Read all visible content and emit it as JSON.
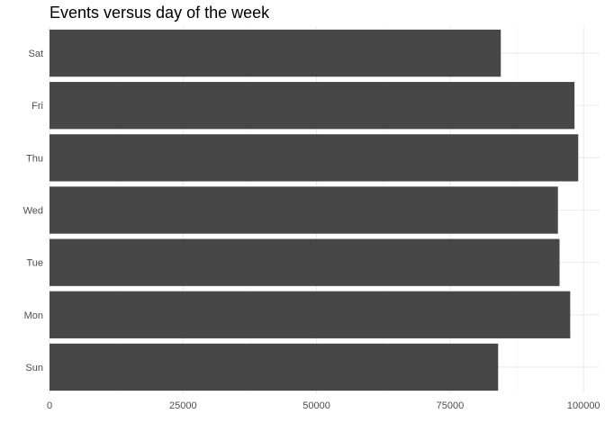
{
  "chart_data": {
    "type": "bar",
    "orientation": "horizontal",
    "title": "Events versus day of the week",
    "xlabel": "",
    "ylabel": "",
    "categories": [
      "Sun",
      "Mon",
      "Tue",
      "Wed",
      "Thu",
      "Fri",
      "Sat"
    ],
    "values": [
      84000,
      97500,
      95500,
      95200,
      99000,
      98300,
      84500
    ],
    "xlim": [
      0,
      103000
    ],
    "xticks": [
      0,
      25000,
      50000,
      75000,
      100000
    ],
    "xtick_labels": [
      "0",
      "25000",
      "50000",
      "75000",
      "100000"
    ],
    "grid": true,
    "legend": "none",
    "bar_color": "#474747",
    "background_color": "#ffffff"
  }
}
